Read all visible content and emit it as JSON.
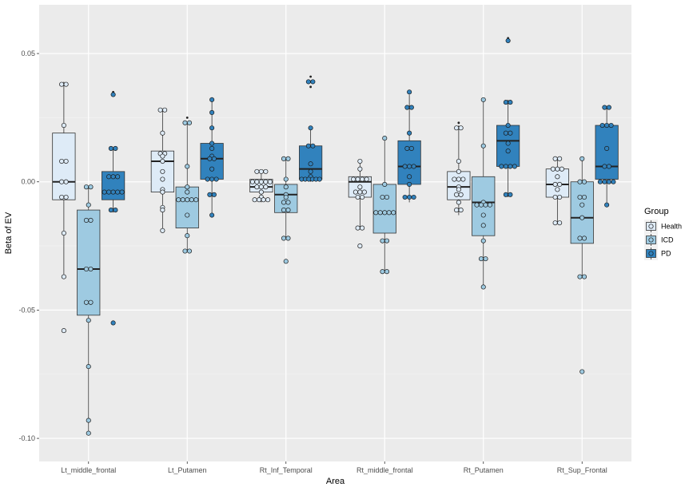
{
  "chart_data": {
    "type": "boxplot",
    "xlabel": "Area",
    "ylabel": "Beta of EV",
    "ylim": [
      -0.109,
      0.069
    ],
    "yticks": [
      0.05,
      0.0,
      -0.05,
      -0.1
    ],
    "ytick_labels": [
      "0.05",
      "0.00",
      "-0.05",
      "-0.10"
    ],
    "categories": [
      "Lt_middle_frontal",
      "Lt_Putamen",
      "Rt_Inf_Temporal",
      "Rt_middle_frontal",
      "Rt_Putamen",
      "Rt_Sup_Frontal"
    ],
    "grid": true,
    "legend": {
      "title": "Group",
      "position": "right"
    },
    "groups": [
      {
        "name": "Health",
        "color": "#deebf7"
      },
      {
        "name": "ICD",
        "color": "#9ecae1"
      },
      {
        "name": "PD",
        "color": "#3182bd"
      }
    ],
    "series": [
      {
        "name": "Health",
        "boxes": [
          {
            "category": "Lt_middle_frontal",
            "q1": -0.007,
            "median": 0.0,
            "q3": 0.019,
            "whisker_low": -0.037,
            "whisker_high": 0.039,
            "outliers": [
              -0.058
            ],
            "points": [
              0.038,
              0.038,
              0.022,
              0.008,
              0.008,
              0.0,
              0.0,
              -0.006,
              -0.006,
              -0.02,
              -0.037,
              -0.058
            ]
          },
          {
            "category": "Lt_Putamen",
            "q1": -0.004,
            "median": 0.008,
            "q3": 0.012,
            "whisker_low": -0.019,
            "whisker_high": 0.028,
            "outliers": [],
            "points": [
              0.028,
              0.028,
              0.019,
              0.011,
              0.011,
              0.01,
              0.008,
              0.004,
              0.001,
              -0.003,
              -0.004,
              -0.01,
              -0.011,
              -0.019
            ]
          },
          {
            "category": "Rt_Inf_Temporal",
            "q1": -0.004,
            "median": -0.002,
            "q3": 0.001,
            "whisker_low": -0.008,
            "whisker_high": 0.004,
            "outliers": [],
            "points": [
              0.004,
              0.004,
              0.004,
              0.0,
              0.0,
              0.0,
              0.0,
              0.0,
              -0.002,
              -0.002,
              -0.002,
              -0.004,
              -0.006,
              -0.007,
              -0.007,
              -0.007,
              -0.007
            ]
          },
          {
            "category": "Rt_middle_frontal",
            "q1": -0.006,
            "median": 0.0,
            "q3": 0.002,
            "whisker_low": -0.018,
            "whisker_high": 0.008,
            "outliers": [
              -0.025
            ],
            "points": [
              0.008,
              0.005,
              0.001,
              0.001,
              0.001,
              0.001,
              -0.002,
              -0.004,
              -0.004,
              -0.004,
              -0.006,
              -0.006,
              -0.018,
              -0.018,
              -0.025
            ]
          },
          {
            "category": "Rt_Putamen",
            "q1": -0.007,
            "median": -0.002,
            "q3": 0.004,
            "whisker_low": -0.013,
            "whisker_high": 0.022,
            "outliers": [
              0.023
            ],
            "points": [
              0.021,
              0.021,
              0.008,
              0.004,
              0.001,
              0.001,
              0.001,
              -0.002,
              -0.003,
              -0.005,
              -0.005,
              -0.008,
              -0.011,
              -0.011
            ]
          },
          {
            "category": "Rt_Sup_Frontal",
            "q1": -0.006,
            "median": -0.001,
            "q3": 0.005,
            "whisker_low": -0.016,
            "whisker_high": 0.009,
            "outliers": [],
            "points": [
              0.009,
              0.009,
              0.005,
              0.005,
              0.005,
              0.002,
              -0.001,
              -0.001,
              -0.003,
              -0.006,
              -0.006,
              -0.016,
              -0.016
            ]
          }
        ]
      },
      {
        "name": "ICD",
        "boxes": [
          {
            "category": "Lt_middle_frontal",
            "q1": -0.052,
            "median": -0.034,
            "q3": -0.011,
            "whisker_low": -0.098,
            "whisker_high": -0.002,
            "outliers": [],
            "points": [
              -0.002,
              -0.002,
              -0.009,
              -0.015,
              -0.015,
              -0.034,
              -0.034,
              -0.047,
              -0.047,
              -0.054,
              -0.072,
              -0.093,
              -0.098
            ]
          },
          {
            "category": "Lt_Putamen",
            "q1": -0.018,
            "median": -0.007,
            "q3": -0.002,
            "whisker_low": -0.027,
            "whisker_high": 0.023,
            "outliers": [
              0.025
            ],
            "points": [
              0.023,
              0.023,
              0.006,
              -0.002,
              -0.004,
              -0.007,
              -0.007,
              -0.007,
              -0.007,
              -0.007,
              -0.013,
              -0.021,
              -0.027,
              -0.027
            ]
          },
          {
            "category": "Rt_Inf_Temporal",
            "q1": -0.012,
            "median": -0.005,
            "q3": -0.001,
            "whisker_low": -0.022,
            "whisker_high": 0.009,
            "outliers": [
              -0.031
            ],
            "points": [
              0.009,
              0.009,
              0.001,
              -0.002,
              -0.005,
              -0.006,
              -0.008,
              -0.008,
              -0.011,
              -0.011,
              -0.022,
              -0.022,
              -0.031
            ]
          },
          {
            "category": "Rt_middle_frontal",
            "q1": -0.02,
            "median": -0.012,
            "q3": -0.001,
            "whisker_low": -0.035,
            "whisker_high": 0.017,
            "outliers": [],
            "points": [
              0.017,
              -0.001,
              -0.006,
              -0.006,
              -0.012,
              -0.012,
              -0.012,
              -0.012,
              -0.012,
              -0.023,
              -0.023,
              -0.035,
              -0.035
            ]
          },
          {
            "category": "Rt_Putamen",
            "q1": -0.021,
            "median": -0.008,
            "q3": 0.002,
            "whisker_low": -0.041,
            "whisker_high": 0.032,
            "outliers": [],
            "points": [
              0.032,
              0.014,
              -0.008,
              -0.009,
              -0.009,
              -0.009,
              -0.009,
              -0.013,
              -0.017,
              -0.023,
              -0.03,
              -0.03,
              -0.041
            ]
          },
          {
            "category": "Rt_Sup_Frontal",
            "q1": -0.024,
            "median": -0.014,
            "q3": 0.0,
            "whisker_low": -0.037,
            "whisker_high": 0.009,
            "outliers": [
              -0.074
            ],
            "points": [
              0.009,
              0.0,
              0.0,
              -0.006,
              -0.006,
              -0.009,
              -0.014,
              -0.022,
              -0.022,
              -0.037,
              -0.037,
              -0.074
            ]
          }
        ]
      },
      {
        "name": "PD",
        "boxes": [
          {
            "category": "Lt_middle_frontal",
            "q1": -0.007,
            "median": -0.004,
            "q3": 0.004,
            "whisker_low": -0.012,
            "whisker_high": 0.013,
            "outliers": [
              0.035,
              -0.055
            ],
            "points": [
              0.034,
              0.013,
              0.013,
              0.002,
              0.002,
              0.002,
              -0.004,
              -0.004,
              -0.004,
              -0.004,
              -0.004,
              -0.011,
              -0.011,
              -0.055
            ]
          },
          {
            "category": "Lt_Putamen",
            "q1": 0.001,
            "median": 0.009,
            "q3": 0.015,
            "whisker_low": -0.014,
            "whisker_high": 0.033,
            "outliers": [],
            "points": [
              0.032,
              0.027,
              0.021,
              0.015,
              0.013,
              0.01,
              0.009,
              0.009,
              0.005,
              0.001,
              0.001,
              0.001,
              -0.005,
              -0.005,
              -0.013
            ]
          },
          {
            "category": "Rt_Inf_Temporal",
            "q1": 0.001,
            "median": 0.005,
            "q3": 0.014,
            "whisker_low": 0.0,
            "whisker_high": 0.021,
            "outliers": [
              0.041,
              0.037
            ],
            "points": [
              0.039,
              0.039,
              0.021,
              0.014,
              0.014,
              0.007,
              0.004,
              0.002,
              0.001,
              0.001,
              0.001,
              0.001,
              0.001,
              0.001
            ]
          },
          {
            "category": "Rt_middle_frontal",
            "q1": -0.001,
            "median": 0.006,
            "q3": 0.016,
            "whisker_low": -0.008,
            "whisker_high": 0.034,
            "outliers": [],
            "points": [
              0.035,
              0.029,
              0.029,
              0.019,
              0.013,
              0.013,
              0.006,
              0.006,
              0.006,
              0.002,
              -0.001,
              -0.006,
              -0.006,
              -0.006
            ]
          },
          {
            "category": "Rt_Putamen",
            "q1": 0.006,
            "median": 0.016,
            "q3": 0.022,
            "whisker_low": -0.006,
            "whisker_high": 0.032,
            "outliers": [
              0.056
            ],
            "points": [
              0.055,
              0.031,
              0.031,
              0.022,
              0.019,
              0.019,
              0.015,
              0.012,
              0.006,
              0.006,
              0.006,
              0.006,
              -0.005,
              -0.005
            ]
          },
          {
            "category": "Rt_Sup_Frontal",
            "q1": 0.001,
            "median": 0.006,
            "q3": 0.022,
            "whisker_low": -0.009,
            "whisker_high": 0.029,
            "outliers": [],
            "points": [
              0.029,
              0.029,
              0.022,
              0.022,
              0.022,
              0.013,
              0.006,
              0.006,
              0.0,
              0.0,
              0.0,
              0.0,
              -0.009
            ]
          }
        ]
      }
    ]
  }
}
